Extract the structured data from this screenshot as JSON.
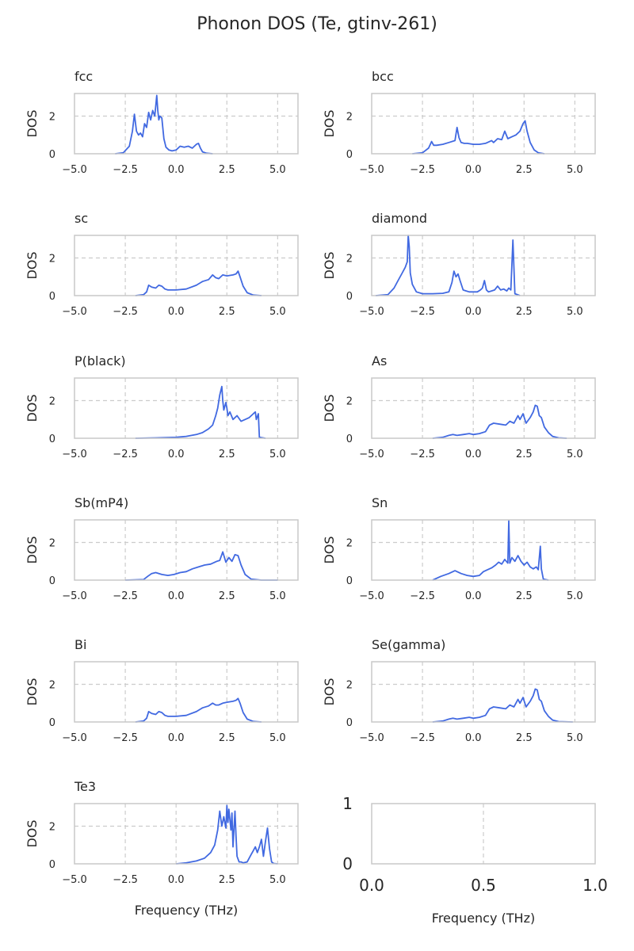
{
  "figure": {
    "title": "Phonon DOS (Te, gtinv-261)",
    "line_color": "#4169e1",
    "grid_color": "#cccccc",
    "frame_color": "#c8c8c8"
  },
  "chart_data": [
    {
      "type": "line",
      "title": "fcc",
      "xlabel": "",
      "ylabel": "DOS",
      "xlim": [
        -5,
        6
      ],
      "ylim": [
        0,
        3.2
      ],
      "xticks": [
        -5.0,
        -2.5,
        0.0,
        2.5,
        5.0
      ],
      "xtick_labels": [
        "−5.0",
        "−2.5",
        "0.0",
        "2.5",
        "5.0"
      ],
      "yticks": [
        0,
        2
      ],
      "ytick_labels": [
        "0",
        "2"
      ],
      "grid": true,
      "series": [
        {
          "x": [
            -3.0,
            -2.6,
            -2.3,
            -2.15,
            -2.05,
            -1.95,
            -1.85,
            -1.75,
            -1.65,
            -1.55,
            -1.45,
            -1.35,
            -1.25,
            -1.15,
            -1.05,
            -0.95,
            -0.9,
            -0.85,
            -0.8,
            -0.7,
            -0.6,
            -0.5,
            -0.35,
            -0.2,
            0.0,
            0.2,
            0.4,
            0.6,
            0.8,
            1.0,
            1.1,
            1.2,
            1.3,
            1.5,
            1.8
          ],
          "y": [
            0.0,
            0.05,
            0.4,
            1.2,
            2.1,
            1.2,
            1.0,
            1.1,
            0.9,
            1.6,
            1.4,
            2.2,
            1.8,
            2.3,
            2.0,
            3.1,
            2.3,
            1.8,
            2.0,
            1.9,
            0.8,
            0.35,
            0.2,
            0.15,
            0.2,
            0.4,
            0.35,
            0.4,
            0.3,
            0.5,
            0.55,
            0.3,
            0.1,
            0.03,
            0.0
          ]
        }
      ]
    },
    {
      "type": "line",
      "title": "bcc",
      "xlabel": "",
      "ylabel": "DOS",
      "xlim": [
        -5,
        6
      ],
      "ylim": [
        0,
        3.2
      ],
      "xticks": [
        -5.0,
        -2.5,
        0.0,
        2.5,
        5.0
      ],
      "xtick_labels": [
        "−5.0",
        "−2.5",
        "0.0",
        "2.5",
        "5.0"
      ],
      "yticks": [
        0,
        2
      ],
      "ytick_labels": [
        "0",
        "2"
      ],
      "grid": true,
      "series": [
        {
          "x": [
            -3.0,
            -2.5,
            -2.2,
            -2.05,
            -1.95,
            -1.8,
            -1.5,
            -1.2,
            -0.9,
            -0.8,
            -0.7,
            -0.6,
            -0.45,
            -0.3,
            0.0,
            0.3,
            0.6,
            0.9,
            1.0,
            1.2,
            1.4,
            1.55,
            1.7,
            1.9,
            2.1,
            2.3,
            2.45,
            2.55,
            2.65,
            2.8,
            3.0,
            3.2,
            3.5
          ],
          "y": [
            0.0,
            0.05,
            0.3,
            0.65,
            0.45,
            0.45,
            0.5,
            0.6,
            0.7,
            1.4,
            0.85,
            0.6,
            0.55,
            0.55,
            0.5,
            0.5,
            0.55,
            0.7,
            0.6,
            0.8,
            0.75,
            1.2,
            0.8,
            0.9,
            1.0,
            1.2,
            1.6,
            1.75,
            1.2,
            0.6,
            0.2,
            0.05,
            0.0
          ]
        }
      ]
    },
    {
      "type": "line",
      "title": "sc",
      "xlabel": "",
      "ylabel": "DOS",
      "xlim": [
        -5,
        6
      ],
      "ylim": [
        0,
        3.2
      ],
      "xticks": [
        -5.0,
        -2.5,
        0.0,
        2.5,
        5.0
      ],
      "xtick_labels": [
        "−5.0",
        "−2.5",
        "0.0",
        "2.5",
        "5.0"
      ],
      "yticks": [
        0,
        2
      ],
      "ytick_labels": [
        "0",
        "2"
      ],
      "grid": true,
      "series": [
        {
          "x": [
            -2.0,
            -1.6,
            -1.45,
            -1.35,
            -1.2,
            -1.0,
            -0.85,
            -0.7,
            -0.55,
            -0.4,
            0.0,
            0.5,
            1.0,
            1.3,
            1.6,
            1.8,
            1.95,
            2.1,
            2.3,
            2.5,
            2.8,
            2.95,
            3.05,
            3.15,
            3.3,
            3.5,
            3.8,
            4.2
          ],
          "y": [
            0.0,
            0.05,
            0.2,
            0.55,
            0.45,
            0.4,
            0.55,
            0.5,
            0.35,
            0.3,
            0.3,
            0.35,
            0.55,
            0.75,
            0.85,
            1.1,
            0.95,
            0.9,
            1.1,
            1.05,
            1.1,
            1.15,
            1.3,
            1.0,
            0.5,
            0.15,
            0.03,
            0.0
          ]
        }
      ]
    },
    {
      "type": "line",
      "title": "diamond",
      "xlabel": "",
      "ylabel": "DOS",
      "xlim": [
        -5,
        6
      ],
      "ylim": [
        0,
        3.2
      ],
      "xticks": [
        -5.0,
        -2.5,
        0.0,
        2.5,
        5.0
      ],
      "xtick_labels": [
        "−5.0",
        "−2.5",
        "0.0",
        "2.5",
        "5.0"
      ],
      "yticks": [
        0,
        2
      ],
      "ytick_labels": [
        "0",
        "2"
      ],
      "grid": true,
      "series": [
        {
          "x": [
            -4.8,
            -4.2,
            -3.9,
            -3.7,
            -3.5,
            -3.35,
            -3.25,
            -3.2,
            -3.15,
            -3.1,
            -3.0,
            -2.8,
            -2.5,
            -2.0,
            -1.5,
            -1.2,
            -1.05,
            -0.95,
            -0.85,
            -0.75,
            -0.65,
            -0.5,
            -0.35,
            -0.2,
            0.0,
            0.2,
            0.35,
            0.45,
            0.55,
            0.65,
            0.75,
            0.9,
            1.05,
            1.2,
            1.35,
            1.5,
            1.65,
            1.75,
            1.85,
            1.95,
            2.05,
            2.3
          ],
          "y": [
            0.0,
            0.05,
            0.4,
            0.8,
            1.2,
            1.5,
            1.8,
            3.2,
            2.6,
            1.2,
            0.6,
            0.2,
            0.1,
            0.1,
            0.12,
            0.2,
            0.7,
            1.3,
            1.0,
            1.15,
            0.8,
            0.3,
            0.25,
            0.2,
            0.2,
            0.2,
            0.3,
            0.4,
            0.8,
            0.3,
            0.2,
            0.25,
            0.3,
            0.5,
            0.3,
            0.35,
            0.25,
            0.4,
            0.3,
            2.95,
            0.1,
            0.0
          ]
        }
      ]
    },
    {
      "type": "line",
      "title": "P(black)",
      "xlabel": "",
      "ylabel": "DOS",
      "xlim": [
        -5,
        6
      ],
      "ylim": [
        0,
        3.2
      ],
      "xticks": [
        -5.0,
        -2.5,
        0.0,
        2.5,
        5.0
      ],
      "xtick_labels": [
        "−5.0",
        "−2.5",
        "0.0",
        "2.5",
        "5.0"
      ],
      "yticks": [
        0,
        2
      ],
      "ytick_labels": [
        "0",
        "2"
      ],
      "grid": true,
      "series": [
        {
          "x": [
            -2.0,
            -1.0,
            0.0,
            0.5,
            1.0,
            1.3,
            1.6,
            1.8,
            1.95,
            2.05,
            2.15,
            2.25,
            2.3,
            2.35,
            2.45,
            2.5,
            2.55,
            2.65,
            2.8,
            3.0,
            3.2,
            3.4,
            3.6,
            3.8,
            3.9,
            3.95,
            4.05,
            4.1,
            4.4
          ],
          "y": [
            0.0,
            0.02,
            0.05,
            0.1,
            0.2,
            0.3,
            0.5,
            0.7,
            1.2,
            1.6,
            2.3,
            2.75,
            2.0,
            1.5,
            1.9,
            1.6,
            1.2,
            1.4,
            1.0,
            1.2,
            0.9,
            1.0,
            1.1,
            1.3,
            1.4,
            1.0,
            1.3,
            0.05,
            0.0
          ]
        }
      ]
    },
    {
      "type": "line",
      "title": "As",
      "xlabel": "",
      "ylabel": "DOS",
      "xlim": [
        -5,
        6
      ],
      "ylim": [
        0,
        3.2
      ],
      "xticks": [
        -5.0,
        -2.5,
        0.0,
        2.5,
        5.0
      ],
      "xtick_labels": [
        "−5.0",
        "−2.5",
        "0.0",
        "2.5",
        "5.0"
      ],
      "yticks": [
        0,
        2
      ],
      "ytick_labels": [
        "0",
        "2"
      ],
      "grid": true,
      "series": [
        {
          "x": [
            -2.0,
            -1.5,
            -1.2,
            -1.0,
            -0.8,
            -0.5,
            -0.2,
            0.0,
            0.3,
            0.6,
            0.8,
            1.0,
            1.3,
            1.6,
            1.8,
            2.0,
            2.2,
            2.3,
            2.45,
            2.6,
            2.8,
            2.95,
            3.05,
            3.15,
            3.25,
            3.35,
            3.5,
            3.7,
            3.9,
            4.2,
            4.6
          ],
          "y": [
            0.0,
            0.05,
            0.15,
            0.2,
            0.15,
            0.2,
            0.25,
            0.2,
            0.25,
            0.35,
            0.7,
            0.8,
            0.75,
            0.7,
            0.9,
            0.8,
            1.2,
            1.0,
            1.3,
            0.8,
            1.1,
            1.4,
            1.75,
            1.7,
            1.2,
            1.1,
            0.6,
            0.3,
            0.1,
            0.02,
            0.0
          ]
        }
      ]
    },
    {
      "type": "line",
      "title": "Sb(mP4)",
      "xlabel": "",
      "ylabel": "DOS",
      "xlim": [
        -5,
        6
      ],
      "ylim": [
        0,
        3.2
      ],
      "xticks": [
        -5.0,
        -2.5,
        0.0,
        2.5,
        5.0
      ],
      "xtick_labels": [
        "−5.0",
        "−2.5",
        "0.0",
        "2.5",
        "5.0"
      ],
      "yticks": [
        0,
        2
      ],
      "ytick_labels": [
        "0",
        "2"
      ],
      "grid": true,
      "series": [
        {
          "x": [
            -2.5,
            -1.6,
            -1.4,
            -1.2,
            -1.0,
            -0.7,
            -0.4,
            -0.1,
            0.2,
            0.5,
            0.8,
            1.1,
            1.4,
            1.7,
            2.0,
            2.15,
            2.3,
            2.45,
            2.6,
            2.75,
            2.9,
            3.05,
            3.2,
            3.4,
            3.7,
            4.2,
            5.0
          ],
          "y": [
            0.0,
            0.03,
            0.2,
            0.35,
            0.4,
            0.3,
            0.25,
            0.3,
            0.4,
            0.45,
            0.6,
            0.7,
            0.8,
            0.85,
            1.0,
            1.05,
            1.5,
            0.95,
            1.2,
            1.0,
            1.35,
            1.3,
            0.8,
            0.3,
            0.05,
            0.0,
            0.0
          ]
        }
      ]
    },
    {
      "type": "line",
      "title": "Sn",
      "xlabel": "",
      "ylabel": "DOS",
      "xlim": [
        -5,
        6
      ],
      "ylim": [
        0,
        3.2
      ],
      "xticks": [
        -5.0,
        -2.5,
        0.0,
        2.5,
        5.0
      ],
      "xtick_labels": [
        "−5.0",
        "−2.5",
        "0.0",
        "2.5",
        "5.0"
      ],
      "yticks": [
        0,
        2
      ],
      "ytick_labels": [
        "0",
        "2"
      ],
      "grid": true,
      "series": [
        {
          "x": [
            -2.0,
            -1.6,
            -1.2,
            -0.9,
            -0.6,
            -0.3,
            0.0,
            0.3,
            0.5,
            0.7,
            0.9,
            1.1,
            1.25,
            1.4,
            1.55,
            1.7,
            1.75,
            1.8,
            1.9,
            2.05,
            2.2,
            2.35,
            2.5,
            2.65,
            2.8,
            2.95,
            3.1,
            3.2,
            3.3,
            3.35,
            3.45,
            3.7
          ],
          "y": [
            0.0,
            0.2,
            0.35,
            0.5,
            0.35,
            0.25,
            0.2,
            0.25,
            0.45,
            0.55,
            0.65,
            0.8,
            0.95,
            0.85,
            1.1,
            0.9,
            3.15,
            0.9,
            1.2,
            1.0,
            1.3,
            1.0,
            0.8,
            0.95,
            0.7,
            0.6,
            0.7,
            0.55,
            1.8,
            0.6,
            0.05,
            0.0
          ]
        }
      ]
    },
    {
      "type": "line",
      "title": "Bi",
      "xlabel": "",
      "ylabel": "DOS",
      "xlim": [
        -5,
        6
      ],
      "ylim": [
        0,
        3.2
      ],
      "xticks": [
        -5.0,
        -2.5,
        0.0,
        2.5,
        5.0
      ],
      "xtick_labels": [
        "−5.0",
        "−2.5",
        "0.0",
        "2.5",
        "5.0"
      ],
      "yticks": [
        0,
        2
      ],
      "ytick_labels": [
        "0",
        "2"
      ],
      "grid": true,
      "series": [
        {
          "x": [
            -2.0,
            -1.6,
            -1.45,
            -1.35,
            -1.2,
            -1.0,
            -0.85,
            -0.7,
            -0.55,
            -0.4,
            0.0,
            0.5,
            1.0,
            1.3,
            1.6,
            1.8,
            1.95,
            2.1,
            2.3,
            2.5,
            2.8,
            2.95,
            3.05,
            3.15,
            3.3,
            3.5,
            3.8,
            4.2
          ],
          "y": [
            0.0,
            0.05,
            0.2,
            0.55,
            0.45,
            0.4,
            0.55,
            0.5,
            0.35,
            0.3,
            0.3,
            0.35,
            0.55,
            0.75,
            0.85,
            1.0,
            0.9,
            0.9,
            1.0,
            1.05,
            1.1,
            1.15,
            1.25,
            1.0,
            0.5,
            0.15,
            0.03,
            0.0
          ]
        }
      ]
    },
    {
      "type": "line",
      "title": "Se(gamma)",
      "xlabel": "",
      "ylabel": "DOS",
      "xlim": [
        -5,
        6
      ],
      "ylim": [
        0,
        3.2
      ],
      "xticks": [
        -5.0,
        -2.5,
        0.0,
        2.5,
        5.0
      ],
      "xtick_labels": [
        "−5.0",
        "−2.5",
        "0.0",
        "2.5",
        "5.0"
      ],
      "yticks": [
        0,
        2
      ],
      "ytick_labels": [
        "0",
        "2"
      ],
      "grid": true,
      "series": [
        {
          "x": [
            -2.0,
            -1.5,
            -1.2,
            -1.0,
            -0.8,
            -0.5,
            -0.2,
            0.0,
            0.3,
            0.6,
            0.8,
            1.0,
            1.3,
            1.6,
            1.8,
            2.0,
            2.2,
            2.3,
            2.45,
            2.6,
            2.8,
            2.95,
            3.05,
            3.15,
            3.25,
            3.35,
            3.5,
            3.7,
            3.9,
            4.2,
            4.9
          ],
          "y": [
            0.0,
            0.05,
            0.15,
            0.2,
            0.15,
            0.2,
            0.25,
            0.2,
            0.25,
            0.35,
            0.7,
            0.8,
            0.75,
            0.7,
            0.9,
            0.8,
            1.2,
            1.0,
            1.3,
            0.8,
            1.1,
            1.4,
            1.75,
            1.7,
            1.2,
            1.1,
            0.6,
            0.3,
            0.1,
            0.02,
            0.0
          ]
        }
      ]
    },
    {
      "type": "line",
      "title": "Te3",
      "xlabel": "Frequency (THz)",
      "ylabel": "DOS",
      "xlim": [
        -5,
        6
      ],
      "ylim": [
        0,
        3.2
      ],
      "xticks": [
        -5.0,
        -2.5,
        0.0,
        2.5,
        5.0
      ],
      "xtick_labels": [
        "−5.0",
        "−2.5",
        "0.0",
        "2.5",
        "5.0"
      ],
      "yticks": [
        0,
        2
      ],
      "ytick_labels": [
        "0",
        "2"
      ],
      "grid": true,
      "series": [
        {
          "x": [
            0.0,
            0.5,
            1.0,
            1.4,
            1.7,
            1.9,
            2.05,
            2.15,
            2.25,
            2.35,
            2.45,
            2.5,
            2.55,
            2.6,
            2.7,
            2.75,
            2.8,
            2.9,
            2.95,
            3.0,
            3.1,
            3.2,
            3.3,
            3.5,
            3.7,
            3.8,
            3.9,
            4.0,
            4.1,
            4.2,
            4.3,
            4.4,
            4.5,
            4.6,
            4.7,
            4.8,
            5.0
          ],
          "y": [
            0.0,
            0.05,
            0.15,
            0.3,
            0.6,
            1.0,
            1.8,
            2.8,
            2.0,
            2.5,
            1.9,
            3.1,
            2.2,
            2.9,
            1.8,
            2.7,
            0.9,
            2.8,
            1.5,
            0.4,
            0.1,
            0.1,
            0.05,
            0.1,
            0.5,
            0.7,
            0.9,
            0.6,
            0.9,
            1.3,
            0.4,
            1.2,
            1.9,
            0.8,
            0.1,
            0.02,
            0.0
          ]
        }
      ]
    },
    {
      "type": "line",
      "title": "",
      "xlabel": "Frequency (THz)",
      "ylabel": "",
      "xlim": [
        0,
        1
      ],
      "ylim": [
        0,
        1
      ],
      "xticks": [
        0.0,
        0.5,
        1.0
      ],
      "xtick_labels": [
        "0.0",
        "0.5",
        "1.0"
      ],
      "yticks": [
        0,
        1
      ],
      "ytick_labels": [
        "0",
        "1"
      ],
      "grid": true,
      "large_ticks": true,
      "series": []
    }
  ]
}
